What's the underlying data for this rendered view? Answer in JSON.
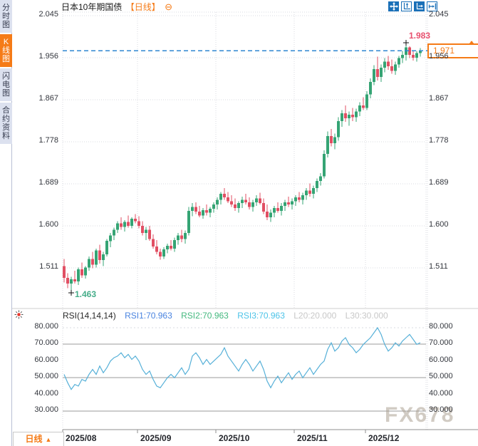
{
  "header": {
    "title": "日本10年期国债",
    "period_tag": "【日线】",
    "collapse_icon": "⊖"
  },
  "sidebar": {
    "tabs": [
      {
        "label": "分时图",
        "active": false
      },
      {
        "label": "K线图",
        "active": true
      },
      {
        "label": "闪电图",
        "active": false
      },
      {
        "label": "合约资料",
        "active": false
      }
    ]
  },
  "toolbar": {
    "icons": [
      "move-icon",
      "scale-vertical-icon",
      "scale-horizontal-icon",
      "jump-to-latest-icon"
    ]
  },
  "main_chart": {
    "annotations": {
      "high": "1.983",
      "low": "1.463",
      "last": "1.971"
    }
  },
  "rsi": {
    "header": {
      "name": "RSI(14,14,14)",
      "rsi1": "RSI1:70.963",
      "rsi2": "RSI2:70.963",
      "rsi3": "RSI3:70.963",
      "l20": "L20:20.000",
      "l30": "L30:30.000"
    }
  },
  "bottom": {
    "period_label": "日线",
    "arrow": "▲"
  },
  "watermark": "FX678",
  "colors": {
    "accent_orange": "#f57b17",
    "up": "#35a474",
    "down": "#e14f63",
    "price_line": "#2e86d1",
    "rsi_line": "#56b0d8",
    "high_label": "#e8506e",
    "low_label": "#45ad89",
    "toolbar_blue": "#1a70b8",
    "grid": "#d9dbe0",
    "rsi_grid_solid": "#9b9b9b"
  },
  "chart_data": [
    {
      "type": "candlestick",
      "title": "日本10年期国债 日线",
      "y_ticks": [
        2.045,
        1.956,
        1.867,
        1.778,
        1.689,
        1.6,
        1.511
      ],
      "ylim": [
        1.455,
        2.045
      ],
      "x_labels": [
        "2025/08",
        "2025/09",
        "2025/10",
        "2025/11",
        "2025/12"
      ],
      "month_start_index": [
        0,
        21,
        43,
        65,
        85
      ],
      "last_price": 1.971,
      "high": 1.983,
      "low": 1.463,
      "candles": [
        [
          1.515,
          1.53,
          1.48,
          1.49
        ],
        [
          1.49,
          1.5,
          1.468,
          1.478
        ],
        [
          1.478,
          1.492,
          1.463,
          1.487
        ],
        [
          1.487,
          1.505,
          1.478,
          1.482
        ],
        [
          1.482,
          1.512,
          1.475,
          1.508
        ],
        [
          1.508,
          1.522,
          1.49,
          1.495
        ],
        [
          1.495,
          1.515,
          1.488,
          1.512
        ],
        [
          1.512,
          1.535,
          1.505,
          1.53
        ],
        [
          1.53,
          1.545,
          1.51,
          1.518
        ],
        [
          1.518,
          1.552,
          1.512,
          1.548
        ],
        [
          1.548,
          1.56,
          1.52,
          1.528
        ],
        [
          1.528,
          1.545,
          1.515,
          1.54
        ],
        [
          1.54,
          1.572,
          1.535,
          1.568
        ],
        [
          1.568,
          1.585,
          1.555,
          1.58
        ],
        [
          1.58,
          1.596,
          1.57,
          1.592
        ],
        [
          1.592,
          1.61,
          1.585,
          1.605
        ],
        [
          1.605,
          1.618,
          1.592,
          1.598
        ],
        [
          1.598,
          1.612,
          1.588,
          1.608
        ],
        [
          1.608,
          1.622,
          1.596,
          1.6
        ],
        [
          1.6,
          1.618,
          1.595,
          1.615
        ],
        [
          1.615,
          1.625,
          1.605,
          1.61
        ],
        [
          1.61,
          1.62,
          1.595,
          1.6
        ],
        [
          1.6,
          1.61,
          1.58,
          1.585
        ],
        [
          1.585,
          1.598,
          1.57,
          1.592
        ],
        [
          1.592,
          1.6,
          1.568,
          1.572
        ],
        [
          1.572,
          1.582,
          1.552,
          1.556
        ],
        [
          1.556,
          1.57,
          1.54,
          1.545
        ],
        [
          1.545,
          1.552,
          1.528,
          1.535
        ],
        [
          1.535,
          1.555,
          1.53,
          1.55
        ],
        [
          1.55,
          1.562,
          1.542,
          1.558
        ],
        [
          1.558,
          1.57,
          1.548,
          1.552
        ],
        [
          1.552,
          1.575,
          1.545,
          1.57
        ],
        [
          1.57,
          1.585,
          1.56,
          1.58
        ],
        [
          1.58,
          1.592,
          1.565,
          1.572
        ],
        [
          1.572,
          1.59,
          1.562,
          1.585
        ],
        [
          1.585,
          1.64,
          1.58,
          1.632
        ],
        [
          1.632,
          1.648,
          1.62,
          1.64
        ],
        [
          1.64,
          1.65,
          1.625,
          1.63
        ],
        [
          1.63,
          1.642,
          1.618,
          1.622
        ],
        [
          1.622,
          1.638,
          1.615,
          1.633
        ],
        [
          1.633,
          1.645,
          1.622,
          1.628
        ],
        [
          1.628,
          1.64,
          1.618,
          1.636
        ],
        [
          1.636,
          1.65,
          1.628,
          1.645
        ],
        [
          1.645,
          1.66,
          1.635,
          1.655
        ],
        [
          1.655,
          1.672,
          1.645,
          1.668
        ],
        [
          1.668,
          1.68,
          1.655,
          1.66
        ],
        [
          1.66,
          1.672,
          1.648,
          1.652
        ],
        [
          1.652,
          1.665,
          1.64,
          1.645
        ],
        [
          1.645,
          1.658,
          1.632,
          1.638
        ],
        [
          1.638,
          1.652,
          1.628,
          1.648
        ],
        [
          1.648,
          1.662,
          1.638,
          1.655
        ],
        [
          1.655,
          1.668,
          1.645,
          1.65
        ],
        [
          1.65,
          1.66,
          1.635,
          1.64
        ],
        [
          1.64,
          1.655,
          1.63,
          1.65
        ],
        [
          1.65,
          1.665,
          1.642,
          1.658
        ],
        [
          1.658,
          1.67,
          1.645,
          1.648
        ],
        [
          1.648,
          1.658,
          1.625,
          1.63
        ],
        [
          1.63,
          1.645,
          1.612,
          1.618
        ],
        [
          1.618,
          1.635,
          1.608,
          1.628
        ],
        [
          1.628,
          1.642,
          1.618,
          1.638
        ],
        [
          1.638,
          1.65,
          1.628,
          1.632
        ],
        [
          1.632,
          1.648,
          1.622,
          1.642
        ],
        [
          1.642,
          1.655,
          1.632,
          1.65
        ],
        [
          1.65,
          1.662,
          1.64,
          1.645
        ],
        [
          1.645,
          1.658,
          1.635,
          1.652
        ],
        [
          1.652,
          1.665,
          1.642,
          1.66
        ],
        [
          1.66,
          1.672,
          1.65,
          1.655
        ],
        [
          1.655,
          1.67,
          1.645,
          1.665
        ],
        [
          1.665,
          1.68,
          1.655,
          1.675
        ],
        [
          1.675,
          1.69,
          1.662,
          1.668
        ],
        [
          1.668,
          1.685,
          1.658,
          1.68
        ],
        [
          1.68,
          1.7,
          1.672,
          1.695
        ],
        [
          1.695,
          1.712,
          1.685,
          1.705
        ],
        [
          1.705,
          1.76,
          1.7,
          1.752
        ],
        [
          1.752,
          1.8,
          1.745,
          1.79
        ],
        [
          1.79,
          1.805,
          1.768,
          1.775
        ],
        [
          1.775,
          1.795,
          1.762,
          1.788
        ],
        [
          1.788,
          1.83,
          1.78,
          1.822
        ],
        [
          1.822,
          1.845,
          1.81,
          1.838
        ],
        [
          1.838,
          1.855,
          1.82,
          1.828
        ],
        [
          1.828,
          1.842,
          1.812,
          1.835
        ],
        [
          1.835,
          1.85,
          1.822,
          1.83
        ],
        [
          1.83,
          1.848,
          1.82,
          1.842
        ],
        [
          1.842,
          1.862,
          1.832,
          1.855
        ],
        [
          1.855,
          1.872,
          1.845,
          1.85
        ],
        [
          1.85,
          1.885,
          1.845,
          1.878
        ],
        [
          1.878,
          1.912,
          1.87,
          1.905
        ],
        [
          1.905,
          1.94,
          1.898,
          1.932
        ],
        [
          1.932,
          1.958,
          1.908,
          1.915
        ],
        [
          1.915,
          1.942,
          1.905,
          1.935
        ],
        [
          1.935,
          1.955,
          1.925,
          1.948
        ],
        [
          1.948,
          1.96,
          1.93,
          1.938
        ],
        [
          1.938,
          1.952,
          1.922,
          1.928
        ],
        [
          1.928,
          1.948,
          1.92,
          1.942
        ],
        [
          1.942,
          1.96,
          1.935,
          1.955
        ],
        [
          1.955,
          1.97,
          1.945,
          1.962
        ],
        [
          1.962,
          1.983,
          1.95,
          1.978
        ],
        [
          1.978,
          1.98,
          1.955,
          1.962
        ],
        [
          1.962,
          1.972,
          1.95,
          1.956
        ],
        [
          1.956,
          1.97,
          1.948,
          1.966
        ],
        [
          1.966,
          1.976,
          1.958,
          1.971
        ]
      ]
    },
    {
      "type": "line",
      "title": "RSI(14,14,14)",
      "legend": [
        "RSI1:70.963",
        "RSI2:70.963",
        "RSI3:70.963",
        "L20:20.000",
        "L30:30.000"
      ],
      "y_ticks": [
        80,
        70,
        60,
        50,
        40,
        30
      ],
      "ylim": [
        25,
        85
      ],
      "gridlines_solid": [
        70,
        50,
        30
      ],
      "gridline_dotted": 80,
      "values": [
        52,
        47,
        43,
        46,
        45,
        49,
        48,
        52,
        55,
        52,
        57,
        53,
        56,
        60,
        62,
        63,
        65,
        62,
        64,
        61,
        63,
        60,
        55,
        52,
        54,
        49,
        45,
        44,
        47,
        50,
        52,
        50,
        53,
        56,
        52,
        55,
        63,
        65,
        62,
        58,
        61,
        58,
        60,
        62,
        64,
        68,
        63,
        60,
        57,
        54,
        58,
        61,
        58,
        54,
        57,
        60,
        55,
        48,
        44,
        48,
        51,
        47,
        50,
        53,
        49,
        52,
        54,
        50,
        53,
        56,
        52,
        55,
        58,
        60,
        67,
        71,
        66,
        68,
        72,
        74,
        70,
        68,
        65,
        67,
        70,
        72,
        74,
        77,
        80,
        76,
        70,
        66,
        68,
        71,
        69,
        72,
        74,
        76,
        73,
        70,
        71
      ]
    }
  ]
}
